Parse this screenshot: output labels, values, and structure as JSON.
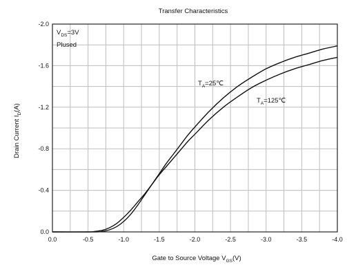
{
  "chart_data": {
    "type": "line",
    "title": "Transfer Characteristics",
    "xlabel": {
      "main": "Gate to Source Voltage V",
      "sub": "GS",
      "unit": "(V)"
    },
    "ylabel": {
      "main": "Drain Current I",
      "sub": "D",
      "unit": "(A)"
    },
    "xlim": [
      0.0,
      -4.0
    ],
    "ylim": [
      0.0,
      -2.0
    ],
    "x_ticks": [
      "0.0",
      "-0.5",
      "-1.0",
      "-1.5",
      "-2.0",
      "-2.5",
      "-3.0",
      "-3.5",
      "-4.0"
    ],
    "y_ticks": [
      "0.0",
      "-0.4",
      "-0.8",
      "-1.2",
      "-1.6",
      "-2.0"
    ],
    "x_tick_values": [
      0.0,
      -0.5,
      -1.0,
      -1.5,
      -2.0,
      -2.5,
      -3.0,
      -3.5,
      -4.0
    ],
    "y_tick_values": [
      0.0,
      -0.4,
      -0.8,
      -1.2,
      -1.6,
      -2.0
    ],
    "grid": true,
    "conditions": [
      {
        "main": "V",
        "sub": "DS",
        "rest": "=3V"
      },
      {
        "main": "Plused",
        "sub": "",
        "rest": ""
      }
    ],
    "series": [
      {
        "name": "TA=25℃",
        "label": {
          "main": "T",
          "sub": "A",
          "rest": "=25℃"
        },
        "x": [
          -0.6,
          -0.7,
          -0.8,
          -0.9,
          -1.0,
          -1.1,
          -1.2,
          -1.3,
          -1.4,
          -1.5,
          -1.6,
          -1.7,
          -1.8,
          -1.9,
          -2.0,
          -2.2,
          -2.4,
          -2.6,
          -2.8,
          -3.0,
          -3.2,
          -3.4,
          -3.6,
          -3.8,
          -4.0
        ],
        "y": [
          0.0,
          -0.005,
          -0.02,
          -0.05,
          -0.1,
          -0.17,
          -0.26,
          -0.36,
          -0.46,
          -0.56,
          -0.66,
          -0.75,
          -0.84,
          -0.93,
          -1.01,
          -1.16,
          -1.29,
          -1.4,
          -1.49,
          -1.57,
          -1.63,
          -1.68,
          -1.72,
          -1.76,
          -1.79
        ]
      },
      {
        "name": "TA=125℃",
        "label": {
          "main": "T",
          "sub": "A",
          "rest": "=125℃"
        },
        "x": [
          -0.5,
          -0.6,
          -0.7,
          -0.8,
          -0.9,
          -1.0,
          -1.1,
          -1.2,
          -1.3,
          -1.4,
          -1.5,
          -1.6,
          -1.7,
          -1.8,
          -1.9,
          -2.0,
          -2.2,
          -2.4,
          -2.6,
          -2.8,
          -3.0,
          -3.2,
          -3.4,
          -3.6,
          -3.8,
          -4.0
        ],
        "y": [
          0.0,
          -0.005,
          -0.015,
          -0.04,
          -0.08,
          -0.14,
          -0.21,
          -0.29,
          -0.37,
          -0.46,
          -0.55,
          -0.63,
          -0.71,
          -0.79,
          -0.87,
          -0.94,
          -1.08,
          -1.2,
          -1.3,
          -1.39,
          -1.46,
          -1.52,
          -1.57,
          -1.61,
          -1.65,
          -1.68
        ]
      }
    ]
  }
}
